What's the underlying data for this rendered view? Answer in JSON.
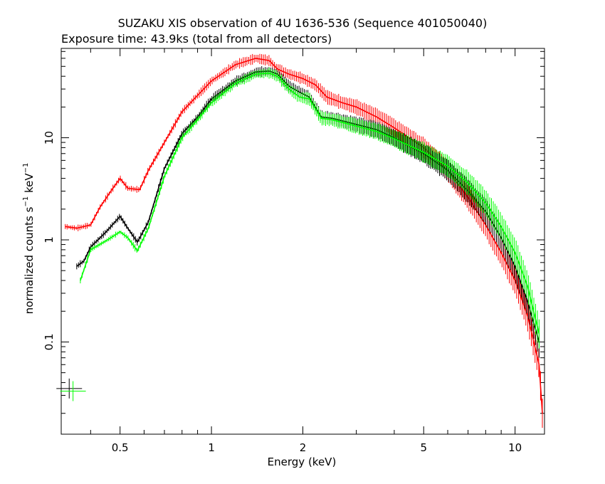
{
  "chart_data": {
    "type": "scatter",
    "title": "SUZAKU XIS observation of 4U 1636-536 (Sequence 401050040)",
    "subtitle": "Exposure time: 43.9ks (total from all detectors)",
    "xlabel": "Energy (keV)",
    "ylabel": {
      "prefix": "normalized counts s",
      "exp1": "−1",
      "middle": " keV",
      "exp2": "−1"
    },
    "x_scale": "log",
    "y_scale": "log",
    "xlim": [
      0.32,
      12.5
    ],
    "ylim": [
      0.0125,
      75
    ],
    "x_ticks": [
      {
        "value": 0.5,
        "label": "0.5"
      },
      {
        "value": 1,
        "label": "1"
      },
      {
        "value": 2,
        "label": "2"
      },
      {
        "value": 5,
        "label": "5"
      },
      {
        "value": 10,
        "label": "10"
      }
    ],
    "y_ticks": [
      {
        "value": 0.1,
        "label": "0.1"
      },
      {
        "value": 1,
        "label": "1"
      },
      {
        "value": 10,
        "label": "10"
      }
    ],
    "grid": false,
    "legend": "none",
    "series": [
      {
        "color": "#ff0000",
        "points": [
          [
            0.33,
            1.35
          ],
          [
            0.36,
            1.3
          ],
          [
            0.4,
            1.4
          ],
          [
            0.43,
            2.1
          ],
          [
            0.47,
            3.1
          ],
          [
            0.5,
            4.0
          ],
          [
            0.53,
            3.2
          ],
          [
            0.58,
            3.1
          ],
          [
            0.62,
            4.8
          ],
          [
            0.7,
            9.0
          ],
          [
            0.8,
            18
          ],
          [
            0.9,
            26
          ],
          [
            1.0,
            36
          ],
          [
            1.2,
            52
          ],
          [
            1.4,
            60
          ],
          [
            1.55,
            57
          ],
          [
            1.65,
            47
          ],
          [
            1.8,
            42
          ],
          [
            2.0,
            38
          ],
          [
            2.2,
            33
          ],
          [
            2.4,
            25
          ],
          [
            2.7,
            22
          ],
          [
            3.0,
            20
          ],
          [
            3.5,
            16
          ],
          [
            4.0,
            12.5
          ],
          [
            5.0,
            8.0
          ],
          [
            6.0,
            4.8
          ],
          [
            7.0,
            2.6
          ],
          [
            8.0,
            1.4
          ],
          [
            9.0,
            0.75
          ],
          [
            10.0,
            0.4
          ],
          [
            11.0,
            0.18
          ],
          [
            12.0,
            0.06
          ],
          [
            12.3,
            0.02
          ]
        ]
      },
      {
        "color": "#000000",
        "points": [
          [
            0.36,
            0.55
          ],
          [
            0.38,
            0.62
          ],
          [
            0.4,
            0.85
          ],
          [
            0.45,
            1.2
          ],
          [
            0.5,
            1.7
          ],
          [
            0.53,
            1.3
          ],
          [
            0.57,
            0.95
          ],
          [
            0.62,
            1.5
          ],
          [
            0.7,
            5.0
          ],
          [
            0.8,
            11
          ],
          [
            0.9,
            16
          ],
          [
            1.0,
            24
          ],
          [
            1.2,
            36
          ],
          [
            1.4,
            44
          ],
          [
            1.55,
            45
          ],
          [
            1.65,
            42
          ],
          [
            1.8,
            32
          ],
          [
            1.95,
            28
          ],
          [
            2.1,
            25
          ],
          [
            2.3,
            16
          ],
          [
            2.5,
            15.5
          ],
          [
            3.0,
            13.5
          ],
          [
            3.5,
            12
          ],
          [
            4.0,
            10
          ],
          [
            5.0,
            7.0
          ],
          [
            6.0,
            4.8
          ],
          [
            7.0,
            3.0
          ],
          [
            8.0,
            1.9
          ],
          [
            9.0,
            1.05
          ],
          [
            10.0,
            0.55
          ],
          [
            11.0,
            0.25
          ],
          [
            12.0,
            0.1
          ]
        ]
      },
      {
        "color": "#00ff00",
        "points": [
          [
            0.37,
            0.4
          ],
          [
            0.4,
            0.8
          ],
          [
            0.45,
            0.98
          ],
          [
            0.5,
            1.2
          ],
          [
            0.53,
            1.05
          ],
          [
            0.57,
            0.78
          ],
          [
            0.62,
            1.3
          ],
          [
            0.7,
            4.2
          ],
          [
            0.8,
            10
          ],
          [
            0.9,
            15
          ],
          [
            1.0,
            22
          ],
          [
            1.2,
            34
          ],
          [
            1.4,
            42
          ],
          [
            1.55,
            43
          ],
          [
            1.65,
            40
          ],
          [
            1.8,
            30
          ],
          [
            1.95,
            25
          ],
          [
            2.1,
            24
          ],
          [
            2.3,
            15.5
          ],
          [
            2.5,
            15
          ],
          [
            3.0,
            13
          ],
          [
            3.5,
            11.5
          ],
          [
            4.0,
            9.8
          ],
          [
            5.0,
            7.2
          ],
          [
            6.0,
            5.3
          ],
          [
            7.0,
            3.6
          ],
          [
            8.0,
            2.3
          ],
          [
            9.0,
            1.35
          ],
          [
            10.0,
            0.75
          ],
          [
            11.0,
            0.35
          ],
          [
            12.0,
            0.12
          ]
        ]
      }
    ],
    "error_crosses": [
      {
        "color": "#000000",
        "x": 0.34,
        "y": 0.035
      },
      {
        "color": "#00ff00",
        "x": 0.35,
        "y": 0.033
      }
    ]
  }
}
